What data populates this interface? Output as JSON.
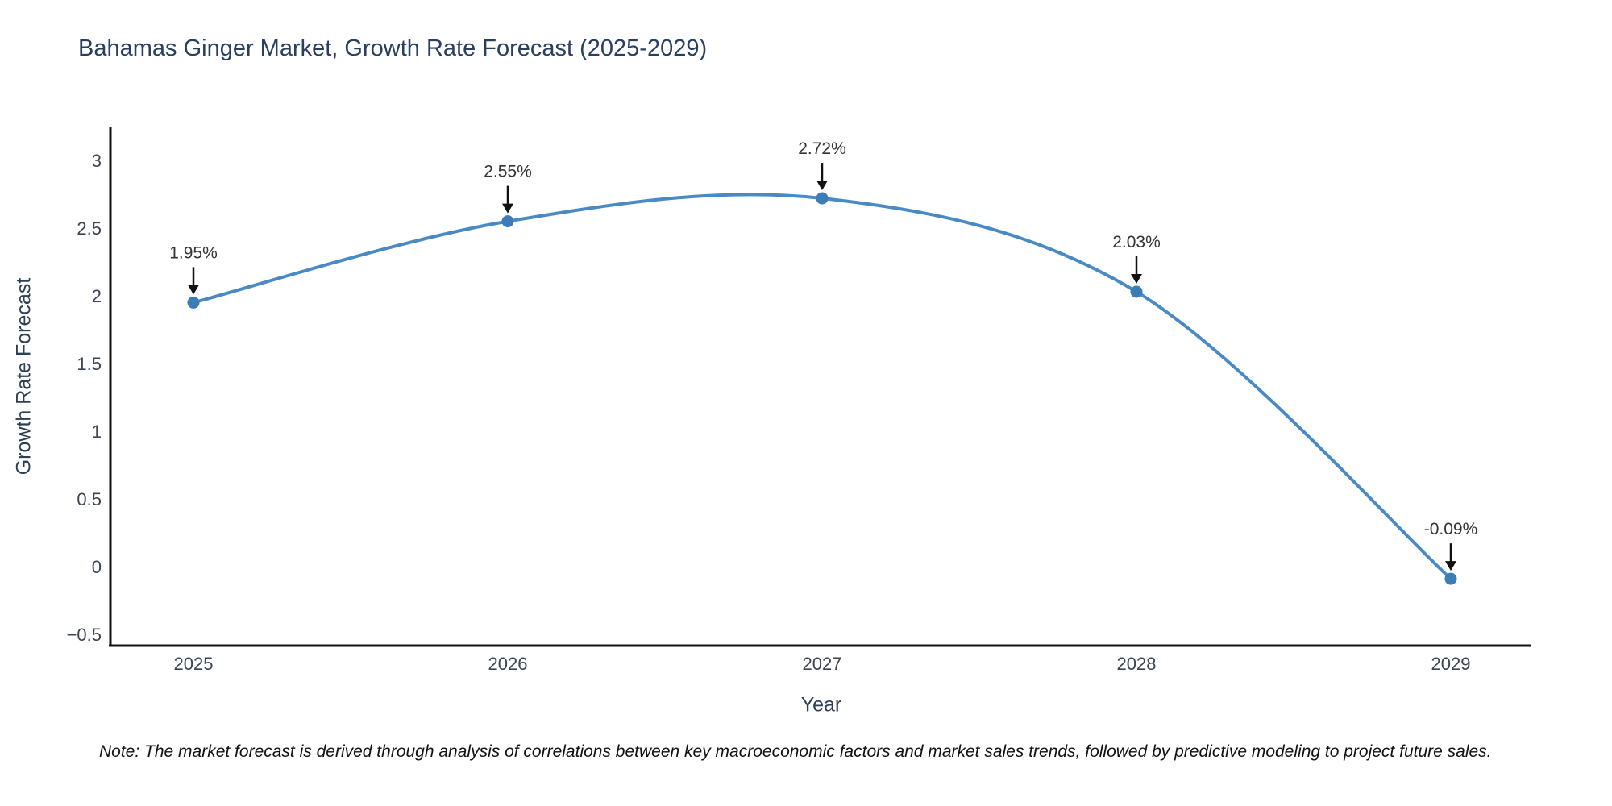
{
  "chart_data": {
    "type": "line",
    "title": "Bahamas Ginger Market, Growth Rate Forecast (2025-2029)",
    "xlabel": "Year",
    "ylabel": "Growth Rate Forecast",
    "categories": [
      "2025",
      "2026",
      "2027",
      "2028",
      "2029"
    ],
    "values": [
      1.95,
      2.55,
      2.72,
      2.03,
      -0.09
    ],
    "point_labels": [
      "1.95%",
      "2.55%",
      "2.72%",
      "2.03%",
      "-0.09%"
    ],
    "ytick_values": [
      3,
      2.5,
      2,
      1.5,
      1,
      0.5,
      0,
      -0.5
    ],
    "ytick_labels": [
      "3",
      "2.5",
      "2",
      "1.5",
      "1",
      "0.5",
      "0",
      "−0.5"
    ],
    "ylim": [
      -0.58,
      3.24
    ],
    "grid": false,
    "legend_position": "none",
    "line_shape": "spline",
    "marker": "circle"
  },
  "note": "Note: The market forecast is derived through analysis of correlations between key macroeconomic factors and market sales trends, followed by predictive modeling to project future sales.",
  "colors": {
    "line": "#4a8ac4",
    "marker": "#3c7cb8",
    "title_text": "#2a3f5f",
    "axis_label_text": "#2e3f54",
    "tick_text": "#3b4554",
    "annotation_text": "#333333",
    "arrow": "#111111",
    "spine": "#111111",
    "background": "#ffffff"
  }
}
